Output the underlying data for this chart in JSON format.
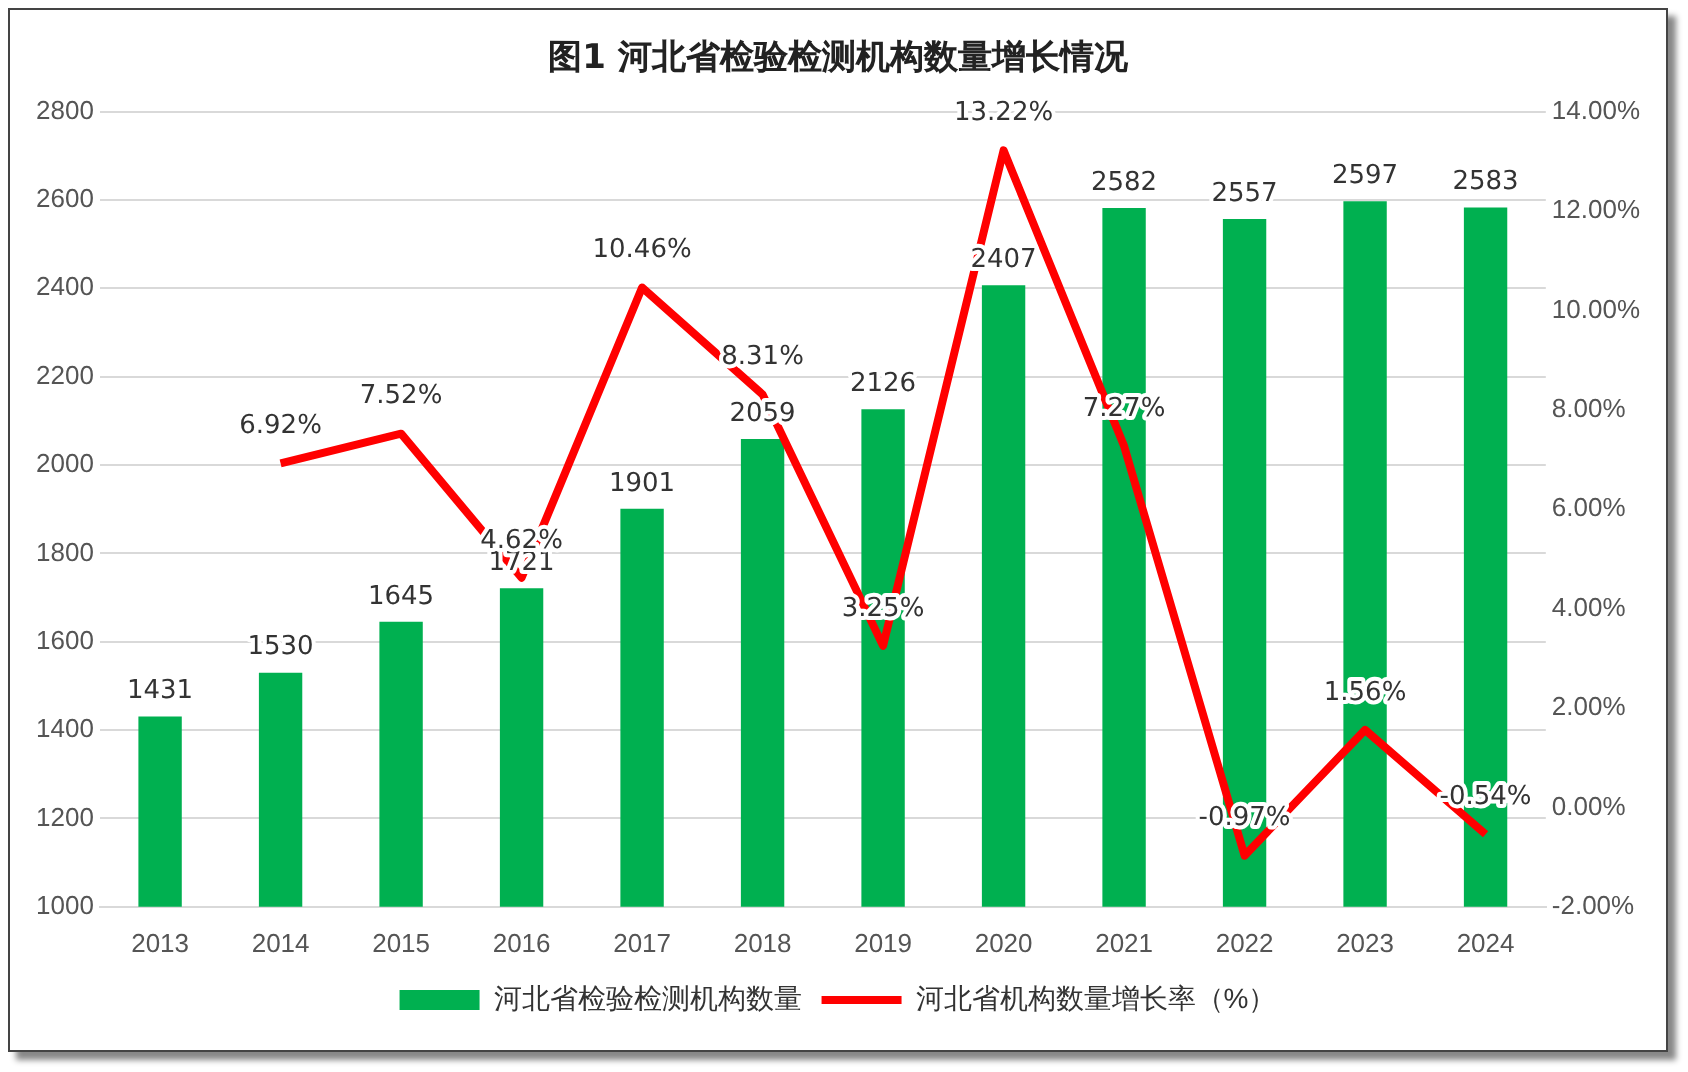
{
  "chart_data": {
    "type": "bar",
    "title": "图1  河北省检验检测机构数量增长情况",
    "categories": [
      "2013",
      "2014",
      "2015",
      "2016",
      "2017",
      "2018",
      "2019",
      "2020",
      "2021",
      "2022",
      "2023",
      "2024"
    ],
    "series": [
      {
        "name": "河北省检验检测机构数量",
        "color": "#00b050",
        "values": [
          1431,
          1530,
          1645,
          1721,
          1901,
          2059,
          2126,
          2407,
          2582,
          2557,
          2597,
          2583
        ],
        "value_labels": [
          "1431",
          "1530",
          "1645",
          "1721",
          "1901",
          "2059",
          "2126",
          "2407",
          "2582",
          "2557",
          "2597",
          "2583"
        ]
      },
      {
        "name": "河北省机构数量增长率（%）",
        "type": "line",
        "axis": "y2",
        "color": "#ff0000",
        "values": [
          null,
          6.92,
          7.52,
          4.62,
          10.46,
          8.31,
          3.25,
          13.22,
          7.27,
          -0.97,
          1.56,
          -0.54
        ],
        "value_labels": [
          null,
          "6.92%",
          "7.52%",
          "4.62%",
          "10.46%",
          "8.31%",
          "3.25%",
          "13.22%",
          "7.27%",
          "-0.97%",
          "1.56%",
          "-0.54%"
        ]
      }
    ],
    "ylim": [
      1000,
      2800
    ],
    "yticks": [
      1000,
      1200,
      1400,
      1600,
      1800,
      2000,
      2200,
      2400,
      2600,
      2800
    ],
    "y2lim": [
      -2,
      14
    ],
    "y2ticks": [
      {
        "value": -2,
        "label": "-2.00%"
      },
      {
        "value": 0,
        "label": "0.00%"
      },
      {
        "value": 2,
        "label": "2.00%"
      },
      {
        "value": 4,
        "label": "4.00%"
      },
      {
        "value": 6,
        "label": "6.00%"
      },
      {
        "value": 8,
        "label": "8.00%"
      },
      {
        "value": 10,
        "label": "10.00%"
      },
      {
        "value": 12,
        "label": "12.00%"
      },
      {
        "value": 14,
        "label": "14.00%"
      }
    ],
    "grid": "y",
    "legend": "bottom",
    "marker": "none",
    "line_style": "solid"
  }
}
